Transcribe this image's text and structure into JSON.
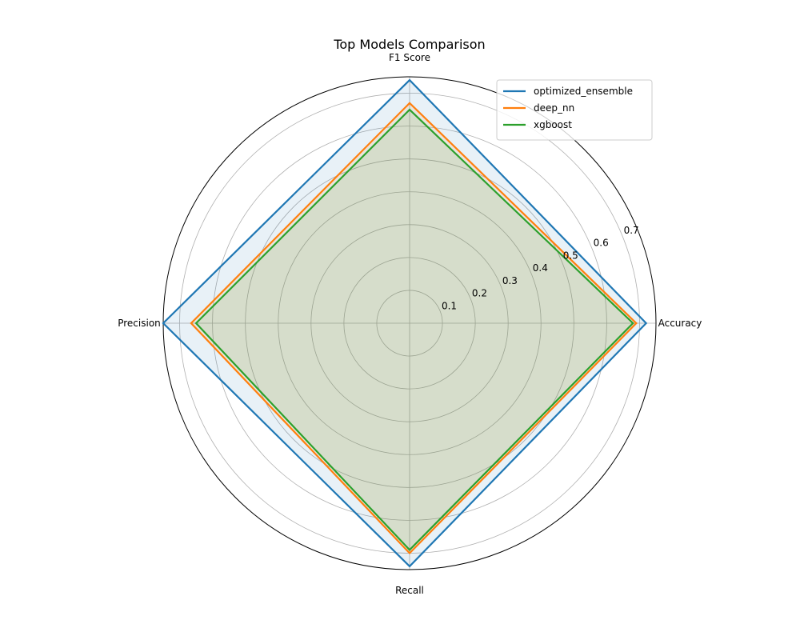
{
  "chart_data": {
    "type": "radar",
    "title": "Top Models Comparison",
    "categories": [
      "Accuracy",
      "F1 Score",
      "Precision",
      "Recall"
    ],
    "rmax": 0.75,
    "rticks": [
      0.1,
      0.2,
      0.3,
      0.4,
      0.5,
      0.6,
      0.7
    ],
    "tick_labels": [
      "0.1",
      "0.2",
      "0.3",
      "0.4",
      "0.5",
      "0.6",
      "0.7"
    ],
    "grid": true,
    "legend_position": "top-right",
    "series": [
      {
        "name": "optimized_ensemble",
        "color": "#1f77b4",
        "values": [
          0.72,
          0.74,
          0.75,
          0.74
        ]
      },
      {
        "name": "deep_nn",
        "color": "#ff7f0e",
        "values": [
          0.69,
          0.67,
          0.665,
          0.7
        ]
      },
      {
        "name": "xgboost",
        "color": "#2ca02c",
        "values": [
          0.68,
          0.65,
          0.65,
          0.69
        ]
      }
    ]
  }
}
